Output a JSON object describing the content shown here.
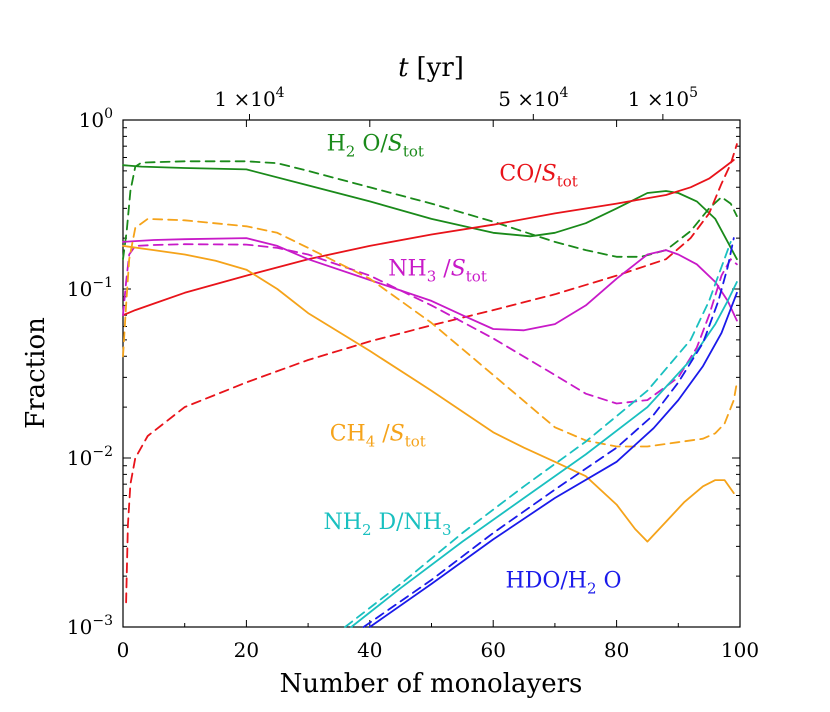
{
  "chart_data": {
    "type": "line",
    "xlabel": "Number of monolayers",
    "ylabel": "Fraction",
    "top_axis_label": {
      "symbol": "t",
      "unit": "[yr]"
    },
    "xlim": [
      0,
      100
    ],
    "ylim": [
      0.001,
      1
    ],
    "yscale": "log",
    "x_ticks": [
      0,
      20,
      40,
      60,
      80,
      100
    ],
    "x_tick_labels": [
      "0",
      "20",
      "40",
      "60",
      "80",
      "100"
    ],
    "y_ticks": [
      0.001,
      0.01,
      0.1,
      1
    ],
    "y_tick_labels": [
      {
        "base": "10",
        "exp": "−3"
      },
      {
        "base": "10",
        "exp": "−2"
      },
      {
        "base": "10",
        "exp": "−1"
      },
      {
        "base": "10",
        "exp": "0"
      }
    ],
    "top_ticks": [
      {
        "x": 20.5,
        "mant": "1 ×10",
        "exp": "4"
      },
      {
        "x": 66.5,
        "mant": "5 ×10",
        "exp": "4"
      },
      {
        "x": 87.5,
        "mant": "1 ×10",
        "exp": "5"
      }
    ],
    "series": [
      {
        "name": "H2O/Stot solid",
        "color": "#1a8a1a",
        "style": "solid",
        "points": [
          [
            0,
            0.54
          ],
          [
            3,
            0.53
          ],
          [
            10,
            0.52
          ],
          [
            20,
            0.51
          ],
          [
            30,
            0.41
          ],
          [
            40,
            0.33
          ],
          [
            50,
            0.26
          ],
          [
            60,
            0.215
          ],
          [
            66,
            0.205
          ],
          [
            70,
            0.215
          ],
          [
            75,
            0.245
          ],
          [
            80,
            0.3
          ],
          [
            85,
            0.37
          ],
          [
            88,
            0.38
          ],
          [
            90,
            0.37
          ],
          [
            93,
            0.33
          ],
          [
            96,
            0.26
          ],
          [
            98,
            0.19
          ],
          [
            99.5,
            0.15
          ]
        ]
      },
      {
        "name": "H2O/Stot dashed",
        "color": "#1a8a1a",
        "style": "dashed",
        "points": [
          [
            0,
            0.15
          ],
          [
            0.6,
            0.22
          ],
          [
            1.2,
            0.38
          ],
          [
            2,
            0.53
          ],
          [
            3,
            0.56
          ],
          [
            10,
            0.57
          ],
          [
            20,
            0.57
          ],
          [
            25,
            0.555
          ],
          [
            30,
            0.5
          ],
          [
            40,
            0.4
          ],
          [
            50,
            0.32
          ],
          [
            60,
            0.25
          ],
          [
            70,
            0.19
          ],
          [
            75,
            0.17
          ],
          [
            80,
            0.155
          ],
          [
            84,
            0.155
          ],
          [
            88,
            0.17
          ],
          [
            92,
            0.22
          ],
          [
            95,
            0.3
          ],
          [
            97,
            0.35
          ],
          [
            98.5,
            0.32
          ],
          [
            99.5,
            0.27
          ]
        ]
      },
      {
        "name": "CO/Stot solid",
        "color": "#e8131a",
        "style": "solid",
        "points": [
          [
            0,
            0.07
          ],
          [
            2,
            0.075
          ],
          [
            5,
            0.082
          ],
          [
            10,
            0.095
          ],
          [
            20,
            0.12
          ],
          [
            30,
            0.15
          ],
          [
            40,
            0.18
          ],
          [
            50,
            0.21
          ],
          [
            60,
            0.24
          ],
          [
            70,
            0.28
          ],
          [
            80,
            0.32
          ],
          [
            88,
            0.36
          ],
          [
            92,
            0.4
          ],
          [
            95,
            0.45
          ],
          [
            97,
            0.51
          ],
          [
            99,
            0.58
          ]
        ]
      },
      {
        "name": "CO/Stot dashed",
        "color": "#e8131a",
        "style": "dashed",
        "points": [
          [
            0.5,
            0.0014
          ],
          [
            0.8,
            0.004
          ],
          [
            1.2,
            0.007
          ],
          [
            2,
            0.01
          ],
          [
            4,
            0.0135
          ],
          [
            10,
            0.02
          ],
          [
            20,
            0.028
          ],
          [
            30,
            0.038
          ],
          [
            40,
            0.049
          ],
          [
            50,
            0.061
          ],
          [
            60,
            0.075
          ],
          [
            70,
            0.093
          ],
          [
            80,
            0.12
          ],
          [
            88,
            0.15
          ],
          [
            92,
            0.2
          ],
          [
            95,
            0.28
          ],
          [
            97,
            0.42
          ],
          [
            98.5,
            0.55
          ],
          [
            99.5,
            0.72
          ]
        ]
      },
      {
        "name": "NH3/Stot solid",
        "color": "#c81ac8",
        "style": "solid",
        "points": [
          [
            0,
            0.19
          ],
          [
            5,
            0.195
          ],
          [
            10,
            0.197
          ],
          [
            20,
            0.2
          ],
          [
            25,
            0.18
          ],
          [
            30,
            0.15
          ],
          [
            40,
            0.113
          ],
          [
            50,
            0.085
          ],
          [
            55,
            0.07
          ],
          [
            60,
            0.058
          ],
          [
            65,
            0.057
          ],
          [
            70,
            0.062
          ],
          [
            75,
            0.08
          ],
          [
            80,
            0.115
          ],
          [
            85,
            0.16
          ],
          [
            88,
            0.17
          ],
          [
            90,
            0.16
          ],
          [
            93,
            0.14
          ],
          [
            96,
            0.11
          ],
          [
            98,
            0.085
          ],
          [
            99.5,
            0.065
          ]
        ]
      },
      {
        "name": "NH3/Stot dashed",
        "color": "#c81ac8",
        "style": "dashed",
        "points": [
          [
            0,
            0.07
          ],
          [
            0.5,
            0.11
          ],
          [
            1,
            0.16
          ],
          [
            2,
            0.18
          ],
          [
            5,
            0.182
          ],
          [
            10,
            0.184
          ],
          [
            20,
            0.183
          ],
          [
            25,
            0.175
          ],
          [
            30,
            0.16
          ],
          [
            40,
            0.12
          ],
          [
            50,
            0.08
          ],
          [
            60,
            0.051
          ],
          [
            70,
            0.031
          ],
          [
            75,
            0.024
          ],
          [
            80,
            0.021
          ],
          [
            85,
            0.022
          ],
          [
            90,
            0.03
          ],
          [
            93,
            0.045
          ],
          [
            95,
            0.07
          ],
          [
            97,
            0.12
          ],
          [
            98.5,
            0.15
          ],
          [
            99.5,
            0.14
          ]
        ]
      },
      {
        "name": "CH4/Stot solid",
        "color": "#f5a31a",
        "style": "solid",
        "points": [
          [
            0,
            0.18
          ],
          [
            5,
            0.17
          ],
          [
            10,
            0.16
          ],
          [
            15,
            0.147
          ],
          [
            20,
            0.13
          ],
          [
            25,
            0.1
          ],
          [
            30,
            0.072
          ],
          [
            40,
            0.043
          ],
          [
            50,
            0.025
          ],
          [
            60,
            0.0142
          ],
          [
            65,
            0.0115
          ],
          [
            70,
            0.0095
          ],
          [
            75,
            0.0078
          ],
          [
            80,
            0.0053
          ],
          [
            83,
            0.0038
          ],
          [
            85,
            0.0032
          ],
          [
            88,
            0.0042
          ],
          [
            91,
            0.0055
          ],
          [
            94,
            0.0068
          ],
          [
            96,
            0.0074
          ],
          [
            97.5,
            0.0074
          ],
          [
            99,
            0.0062
          ]
        ]
      },
      {
        "name": "CH4/Stot dashed",
        "color": "#f5a31a",
        "style": "dashed",
        "points": [
          [
            0,
            0.04
          ],
          [
            0.5,
            0.08
          ],
          [
            1,
            0.15
          ],
          [
            2,
            0.23
          ],
          [
            4,
            0.26
          ],
          [
            10,
            0.255
          ],
          [
            20,
            0.235
          ],
          [
            25,
            0.215
          ],
          [
            30,
            0.175
          ],
          [
            40,
            0.115
          ],
          [
            50,
            0.063
          ],
          [
            60,
            0.031
          ],
          [
            70,
            0.0152
          ],
          [
            75,
            0.0127
          ],
          [
            80,
            0.0117
          ],
          [
            85,
            0.0117
          ],
          [
            90,
            0.0124
          ],
          [
            94,
            0.013
          ],
          [
            96,
            0.014
          ],
          [
            97.5,
            0.016
          ],
          [
            99,
            0.022
          ],
          [
            99.5,
            0.028
          ]
        ]
      },
      {
        "name": "NH2D/NH3 solid",
        "color": "#1ac0c0",
        "style": "solid",
        "points": [
          [
            37,
            0.001
          ],
          [
            45,
            0.0017
          ],
          [
            55,
            0.0032
          ],
          [
            65,
            0.0058
          ],
          [
            75,
            0.0105
          ],
          [
            85,
            0.02
          ],
          [
            92,
            0.038
          ],
          [
            96,
            0.062
          ],
          [
            98,
            0.085
          ],
          [
            99.5,
            0.11
          ]
        ]
      },
      {
        "name": "NH2D/NH3 dashed",
        "color": "#1ac0c0",
        "style": "dashed",
        "points": [
          [
            36,
            0.001
          ],
          [
            45,
            0.0018
          ],
          [
            55,
            0.0036
          ],
          [
            65,
            0.0068
          ],
          [
            75,
            0.0125
          ],
          [
            85,
            0.025
          ],
          [
            92,
            0.05
          ],
          [
            95,
            0.085
          ],
          [
            97,
            0.135
          ],
          [
            98.5,
            0.19
          ]
        ]
      },
      {
        "name": "HDO/H2O solid",
        "color": "#1a1aea",
        "style": "solid",
        "points": [
          [
            40,
            0.001
          ],
          [
            50,
            0.0018
          ],
          [
            60,
            0.0033
          ],
          [
            70,
            0.0058
          ],
          [
            80,
            0.0095
          ],
          [
            86,
            0.015
          ],
          [
            90,
            0.022
          ],
          [
            94,
            0.035
          ],
          [
            97,
            0.055
          ],
          [
            99.5,
            0.095
          ]
        ]
      },
      {
        "name": "HDO/H2O dashed",
        "color": "#1a1aea",
        "style": "dashed",
        "points": [
          [
            39,
            0.001
          ],
          [
            50,
            0.0019
          ],
          [
            60,
            0.0036
          ],
          [
            70,
            0.0065
          ],
          [
            80,
            0.0115
          ],
          [
            86,
            0.018
          ],
          [
            90,
            0.028
          ],
          [
            94,
            0.048
          ],
          [
            96.5,
            0.085
          ],
          [
            98,
            0.135
          ],
          [
            99,
            0.2
          ]
        ]
      }
    ],
    "annotations": [
      {
        "id": "h2o",
        "color": "#1a8a1a",
        "x": 33,
        "y": 0.66,
        "parts": [
          {
            "t": "H"
          },
          {
            "sub": "2"
          },
          {
            "t": " O/"
          },
          {
            "it": "S"
          },
          {
            "sub": "tot"
          }
        ]
      },
      {
        "id": "co",
        "color": "#e8131a",
        "x": 61,
        "y": 0.44,
        "parts": [
          {
            "t": "CO/"
          },
          {
            "it": "S"
          },
          {
            "sub": "tot"
          }
        ]
      },
      {
        "id": "nh3",
        "color": "#c81ac8",
        "x": 43,
        "y": 0.12,
        "parts": [
          {
            "t": "NH"
          },
          {
            "sub": "3"
          },
          {
            "t": " /"
          },
          {
            "it": "S"
          },
          {
            "sub": "tot"
          }
        ]
      },
      {
        "id": "ch4",
        "color": "#f5a31a",
        "x": 33.5,
        "y": 0.0127,
        "parts": [
          {
            "t": "CH"
          },
          {
            "sub": "4"
          },
          {
            "t": " /"
          },
          {
            "it": "S"
          },
          {
            "sub": "tot"
          }
        ]
      },
      {
        "id": "nh2d",
        "color": "#1ac0c0",
        "x": 32.5,
        "y": 0.0038,
        "parts": [
          {
            "t": "NH"
          },
          {
            "sub": "2"
          },
          {
            "t": " D/NH"
          },
          {
            "sub": "3"
          }
        ]
      },
      {
        "id": "hdo",
        "color": "#1a1aea",
        "x": 62,
        "y": 0.00171,
        "parts": [
          {
            "t": "HDO/H"
          },
          {
            "sub": "2"
          },
          {
            "t": " O"
          }
        ]
      }
    ]
  }
}
